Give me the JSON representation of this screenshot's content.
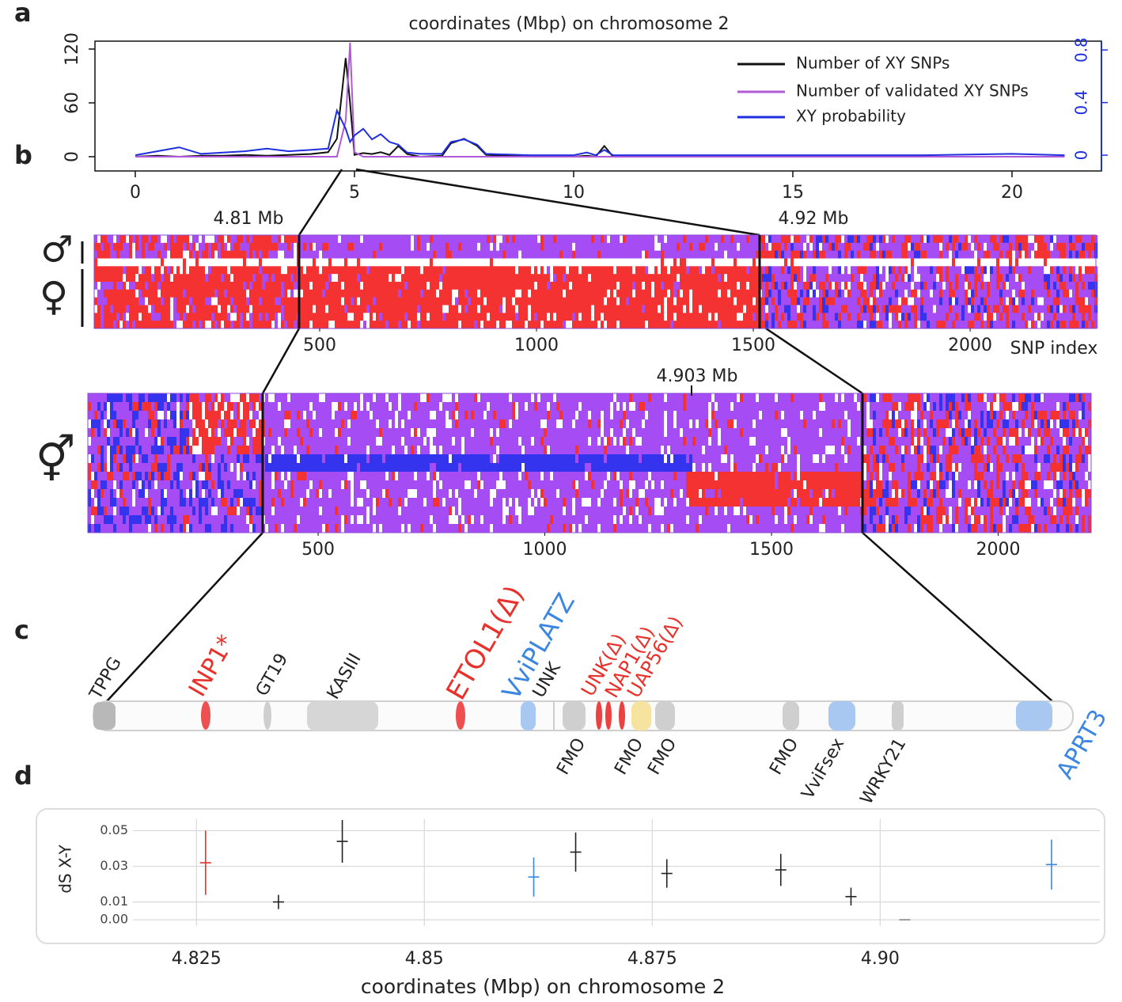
{
  "panel_labels": [
    "a",
    "b",
    "c",
    "d"
  ],
  "symbols": {
    "male": "♂",
    "female": "♀",
    "both": "⚥"
  },
  "chart_data": [
    {
      "type": "line",
      "title": "coordinates (Mbp) on chromosome 2",
      "x": [
        0,
        0.5,
        1,
        1.5,
        2,
        2.5,
        3,
        3.5,
        4,
        4.4,
        4.6,
        4.8,
        4.9,
        5,
        5.2,
        5.4,
        5.6,
        5.8,
        6,
        6.2,
        6.5,
        7,
        7.2,
        7.5,
        7.8,
        8,
        9,
        10,
        10.3,
        10.5,
        10.7,
        10.9,
        12,
        15,
        18,
        20,
        21.2
      ],
      "series": [
        {
          "name": "Number of XY SNPs",
          "color": "#111111",
          "axis": "y",
          "values": [
            0,
            1,
            0,
            1,
            1,
            2,
            1,
            2,
            3,
            5,
            20,
            110,
            60,
            2,
            4,
            3,
            5,
            2,
            12,
            3,
            0,
            1,
            15,
            20,
            12,
            2,
            0,
            0,
            1,
            0,
            12,
            0,
            0,
            0,
            0,
            0,
            0
          ]
        },
        {
          "name": "Number of validated XY SNPs",
          "color": "#b05ad8",
          "axis": "y",
          "values": [
            0,
            0,
            0,
            0,
            0,
            0,
            0,
            0,
            0,
            0,
            0,
            40,
            127,
            5,
            0,
            0,
            0,
            0,
            0,
            0,
            0,
            0,
            0,
            0,
            0,
            0,
            0,
            0,
            0,
            0,
            0,
            0,
            0,
            0,
            0,
            0,
            0
          ]
        },
        {
          "name": "XY probability",
          "color": "#1f2fe0",
          "axis": "y2",
          "values": [
            0,
            0.03,
            0.06,
            0.01,
            0.02,
            0.03,
            0.05,
            0.03,
            0.04,
            0.05,
            0.34,
            0.2,
            0.1,
            0.15,
            0.2,
            0.12,
            0.16,
            0.1,
            0.08,
            0.02,
            0.01,
            0.01,
            0.1,
            0.12,
            0.08,
            0.01,
            0,
            0,
            0.02,
            0,
            0.04,
            0,
            0,
            0,
            0,
            0.01,
            0
          ]
        }
      ],
      "xlim": [
        -0.92,
        22.04
      ],
      "xticks": [
        0,
        5,
        10,
        15,
        20
      ],
      "ylim": [
        -15.9,
        128.8
      ],
      "yticks": [
        0,
        60,
        120
      ],
      "y2lim": [
        -0.12,
        0.867
      ],
      "y2ticks": [
        0,
        0.4,
        0.8
      ],
      "y2color": "#1f2fe0",
      "legend": "top-right"
    },
    {
      "type": "heatmap",
      "xlim": [
        -20,
        2290
      ],
      "xticks": [
        500,
        1000,
        1500,
        2000
      ],
      "xlabel": "SNP index",
      "left_marker": "4.81 Mb",
      "right_marker": "4.92 Mb"
    },
    {
      "type": "heatmap",
      "xlim": [
        -8,
        2205
      ],
      "xticks": [
        500,
        1000,
        1500,
        2000
      ],
      "marker": "4.903 Mb"
    },
    {
      "type": "errorbar",
      "ylabel": "dS X-Y",
      "xlabel": "coordinates (Mbp) on chromosome 2",
      "x": [
        4.826,
        4.834,
        4.841,
        4.862,
        4.8666,
        4.8766,
        4.8891,
        4.8968,
        4.9027,
        4.9188
      ],
      "values": [
        0.032,
        0.01,
        0.044,
        0.024,
        0.038,
        0.026,
        0.028,
        0.013,
        0,
        0.031
      ],
      "errors": [
        0.018,
        0.004,
        0.012,
        0.011,
        0.011,
        0.008,
        0.009,
        0.005,
        0,
        0.014
      ],
      "colors": [
        "#e8312a",
        "#222222",
        "#222222",
        "#3b86e0",
        "#222222",
        "#222222",
        "#222222",
        "#222222",
        "#888888",
        "#3b86e0"
      ],
      "xlim": [
        4.813,
        4.9241
      ],
      "xticks": [
        4.825,
        4.85,
        4.875,
        {
          "value": 4.9,
          "label": "4.90"
        }
      ],
      "ylim": [
        -0.0044,
        0.0587
      ],
      "yticks": [
        {
          "value": 0,
          "label": "0.00"
        },
        0.01,
        0.03,
        0.05
      ],
      "grid": true
    }
  ],
  "gene_track": {
    "above": [
      {
        "label": "TPPG",
        "color": "#222222"
      },
      {
        "label": "INP1*",
        "color": "#e8312a"
      },
      {
        "label": "GT19",
        "color": "#222222"
      },
      {
        "label": "KASIII",
        "color": "#222222"
      },
      {
        "label": "ETOL1(Δ)",
        "color": "#e8312a"
      },
      {
        "label": "VviPLATZ",
        "color": "#3b86e0"
      },
      {
        "label": "UNK",
        "color": "#222222"
      },
      {
        "label": "UNK(Δ)",
        "color": "#e8312a"
      },
      {
        "label": "NAP1(Δ)",
        "color": "#e8312a"
      },
      {
        "label": "UAP56(Δ)",
        "color": "#e8312a"
      }
    ],
    "below": [
      {
        "label": "FMO",
        "color": "#222222"
      },
      {
        "label": "FMO",
        "color": "#222222"
      },
      {
        "label": "FMO",
        "color": "#222222"
      },
      {
        "label": "FMO",
        "color": "#222222"
      },
      {
        "label": "VviFsex",
        "color": "#222222"
      },
      {
        "label": "WRKY21",
        "color": "#222222"
      },
      {
        "label": "APRT3",
        "color": "#3b86e0"
      }
    ]
  }
}
